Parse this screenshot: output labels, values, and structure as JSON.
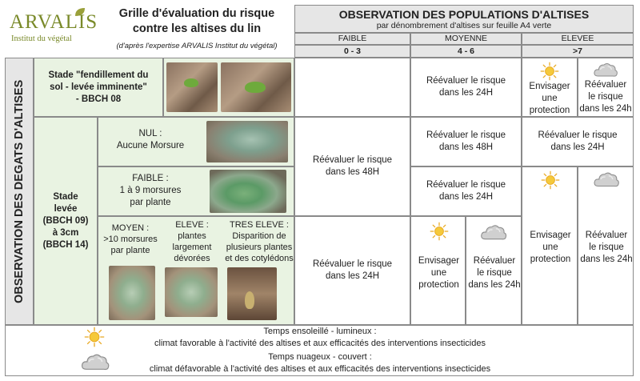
{
  "logo": {
    "name": "ARVALIS",
    "tagline": "Institut du végétal"
  },
  "header": {
    "title_line1": "Grille d'évaluation du risque",
    "title_line2": "contre les altises du lin",
    "subtitle": "(d'après l'expertise ARVALIS Institut du végétal)"
  },
  "observation": {
    "title": "OBSERVATION DES POPULATIONS D'ALTISES",
    "subtitle": "par dénombrement d'altises sur feuille A4 verte",
    "levels": [
      {
        "label": "FAIBLE",
        "range": "0 - 3"
      },
      {
        "label": "MOYENNE",
        "range": "4 - 6"
      },
      {
        "label": "ELEVEE",
        "range": ">7"
      }
    ]
  },
  "left_axis": "OBSERVATION DES DEGATS D'ALTISES",
  "stages": {
    "stage1": {
      "line1": "Stade \"fendillement du",
      "line2": "sol - levée imminente\"",
      "line3": "- BBCH 08"
    },
    "stage2": {
      "line1": "Stade",
      "line2": "levée",
      "line3": "(BBCH 09)",
      "line4": "à 3cm",
      "line5": "(BBCH 14)"
    }
  },
  "damage": {
    "nul": {
      "line1": "NUL :",
      "line2": "Aucune Morsure"
    },
    "faible": {
      "line1": "FAIBLE :",
      "line2": "1 à 9 morsures",
      "line3": "par plante"
    },
    "moyen": {
      "line1": "MOYEN :",
      "line2": ">10 morsures",
      "line3": "par plante"
    },
    "eleve": {
      "line1": "ELEVE :",
      "line2": "plantes",
      "line3": "largement",
      "line4": "dévorées"
    },
    "tres_eleve": {
      "line1": "TRES ELEVE :",
      "line2": "Disparition de",
      "line3": "plusieurs plantes",
      "line4": "et des cotylédons"
    }
  },
  "actions": {
    "reeval_24_l1": "Réévaluer le risque",
    "reeval_24_l2": "dans les 24H",
    "reeval_48_l1": "Réévaluer le risque",
    "reeval_48_l2": "dans les 48H",
    "reeval_24h_l1": "Réévaluer",
    "reeval_24h_l2": "le risque",
    "reeval_24h_l3": "dans les 24h",
    "envisager_l1": "Envisager",
    "envisager_l2": "une",
    "envisager_l3": "protection"
  },
  "legend": {
    "sunny_title": "Temps ensoleillé - lumineux :",
    "sunny_desc": "climat favorable à l'activité des altises et aux efficacités des  interventions insecticides",
    "cloudy_title": "Temps nuageux - couvert :",
    "cloudy_desc": "climat défavorable à l'activité des altises et aux efficacités des interventions insecticides"
  },
  "colors": {
    "logo_text": "#7a8a2a",
    "logo_accent": "#9aa03a",
    "green_bg": "#e9f3e2",
    "gray_bg": "#e6e6e6",
    "sun": "#f2c230",
    "cloud": "#c8c8c8"
  },
  "icons": {
    "sun": "sun-icon",
    "cloud": "cloud-icon"
  }
}
